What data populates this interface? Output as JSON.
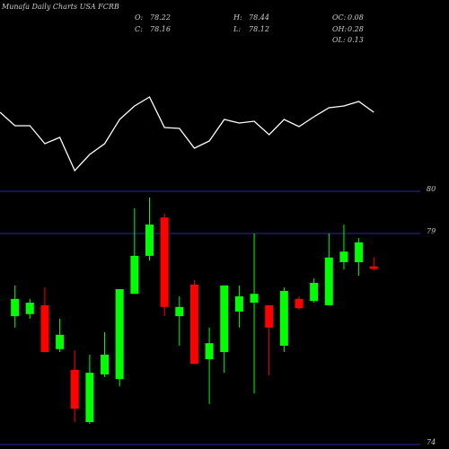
{
  "chart_data": {
    "type": "candlestick",
    "title": "Munafa Daily Charts USA FCRB",
    "info": [
      {
        "label": "O:",
        "value": 78.22
      },
      {
        "label": "C:",
        "value": 78.16
      },
      {
        "label": "H:",
        "value": 78.44
      },
      {
        "label": "L:",
        "value": 78.12
      },
      {
        "label": "OC:",
        "value": 0.08
      },
      {
        "label": "OH:",
        "value": 0.28
      },
      {
        "label": "OL:",
        "value": 0.13
      }
    ],
    "categories": [
      null,
      null,
      null,
      null,
      null,
      null,
      null,
      null,
      null,
      null,
      null,
      null,
      null,
      null,
      null,
      null,
      null,
      null,
      null,
      null,
      null,
      null,
      null,
      null,
      null,
      null
    ],
    "open": [
      null,
      77.04,
      77.09,
      77.3,
      76.26,
      75.77,
      74.53,
      75.66,
      75.55,
      77.57,
      78.47,
      79.38,
      77.04,
      77.79,
      76.02,
      76.19,
      77.15,
      77.36,
      77.3,
      76.34,
      77.45,
      77.4,
      77.3,
      78.32,
      78.32,
      78.22
    ],
    "high": [
      null,
      77.77,
      77.45,
      77.72,
      76.98,
      76.23,
      76.13,
      76.66,
      77.68,
      79.6,
      79.85,
      79.47,
      77.51,
      77.89,
      76.77,
      77.77,
      77.77,
      79.0,
      77.3,
      77.72,
      77.51,
      77.94,
      79.0,
      79.21,
      78.89,
      78.44
    ],
    "low": [
      null,
      76.77,
      76.98,
      76.19,
      76.19,
      74.53,
      74.49,
      75.6,
      75.38,
      77.57,
      78.36,
      77.04,
      76.34,
      75.91,
      74.96,
      75.7,
      76.77,
      75.21,
      75.64,
      76.19,
      77.19,
      77.36,
      77.3,
      78.15,
      78.0,
      78.12
    ],
    "close": [
      null,
      77.45,
      77.36,
      76.19,
      76.6,
      74.85,
      75.7,
      76.13,
      77.68,
      78.47,
      79.21,
      77.26,
      77.26,
      75.91,
      76.4,
      77.77,
      77.51,
      77.57,
      76.77,
      77.64,
      77.23,
      77.83,
      78.43,
      78.57,
      78.79,
      78.16
    ],
    "up_color": "#00ff00",
    "down_color": "#ff0000",
    "ylim": [
      74,
      80
    ],
    "yticks": [
      74,
      79,
      80
    ],
    "grid_color": "#2a2aa8",
    "indicator": {
      "color": "#ffffff",
      "values": [
        75,
        60,
        60,
        40,
        47,
        10,
        28,
        40,
        67,
        82,
        92,
        58,
        57,
        35,
        43,
        67,
        63,
        65,
        50,
        67,
        59,
        70,
        80,
        82,
        87,
        75
      ],
      "ylim": [
        0,
        100
      ]
    }
  }
}
